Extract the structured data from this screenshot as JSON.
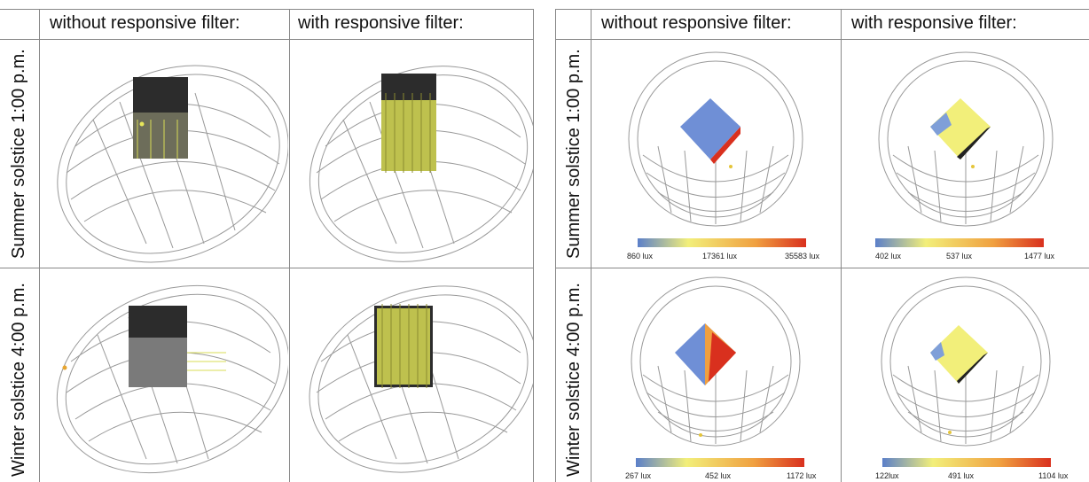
{
  "left": {
    "headers": [
      "without responsive filter:",
      "with responsive filter:"
    ],
    "rows": [
      "Summer solstice 1:00 p.m.",
      "Winter solstice 4:00 p.m."
    ]
  },
  "right": {
    "headers": [
      "without responsive filter:",
      "with responsive filter:"
    ],
    "rows": [
      "Summer solstice 1:00 p.m.",
      "Winter solstice 4:00 p.m."
    ],
    "legends": [
      [
        "860 lux",
        "17361 lux",
        "35583 lux"
      ],
      [
        "402 lux",
        "537 lux",
        "1477 lux"
      ],
      [
        "267 lux",
        "452 lux",
        "1172 lux"
      ],
      [
        "122lux",
        "491 lux",
        "1104 lux"
      ]
    ]
  },
  "colors": {
    "scale_low": "#5b7fc9",
    "scale_mid": "#f2ef7a",
    "scale_high": "#d9301e",
    "box_dark": "#2c2c2c",
    "rays": "#d8dc55"
  }
}
